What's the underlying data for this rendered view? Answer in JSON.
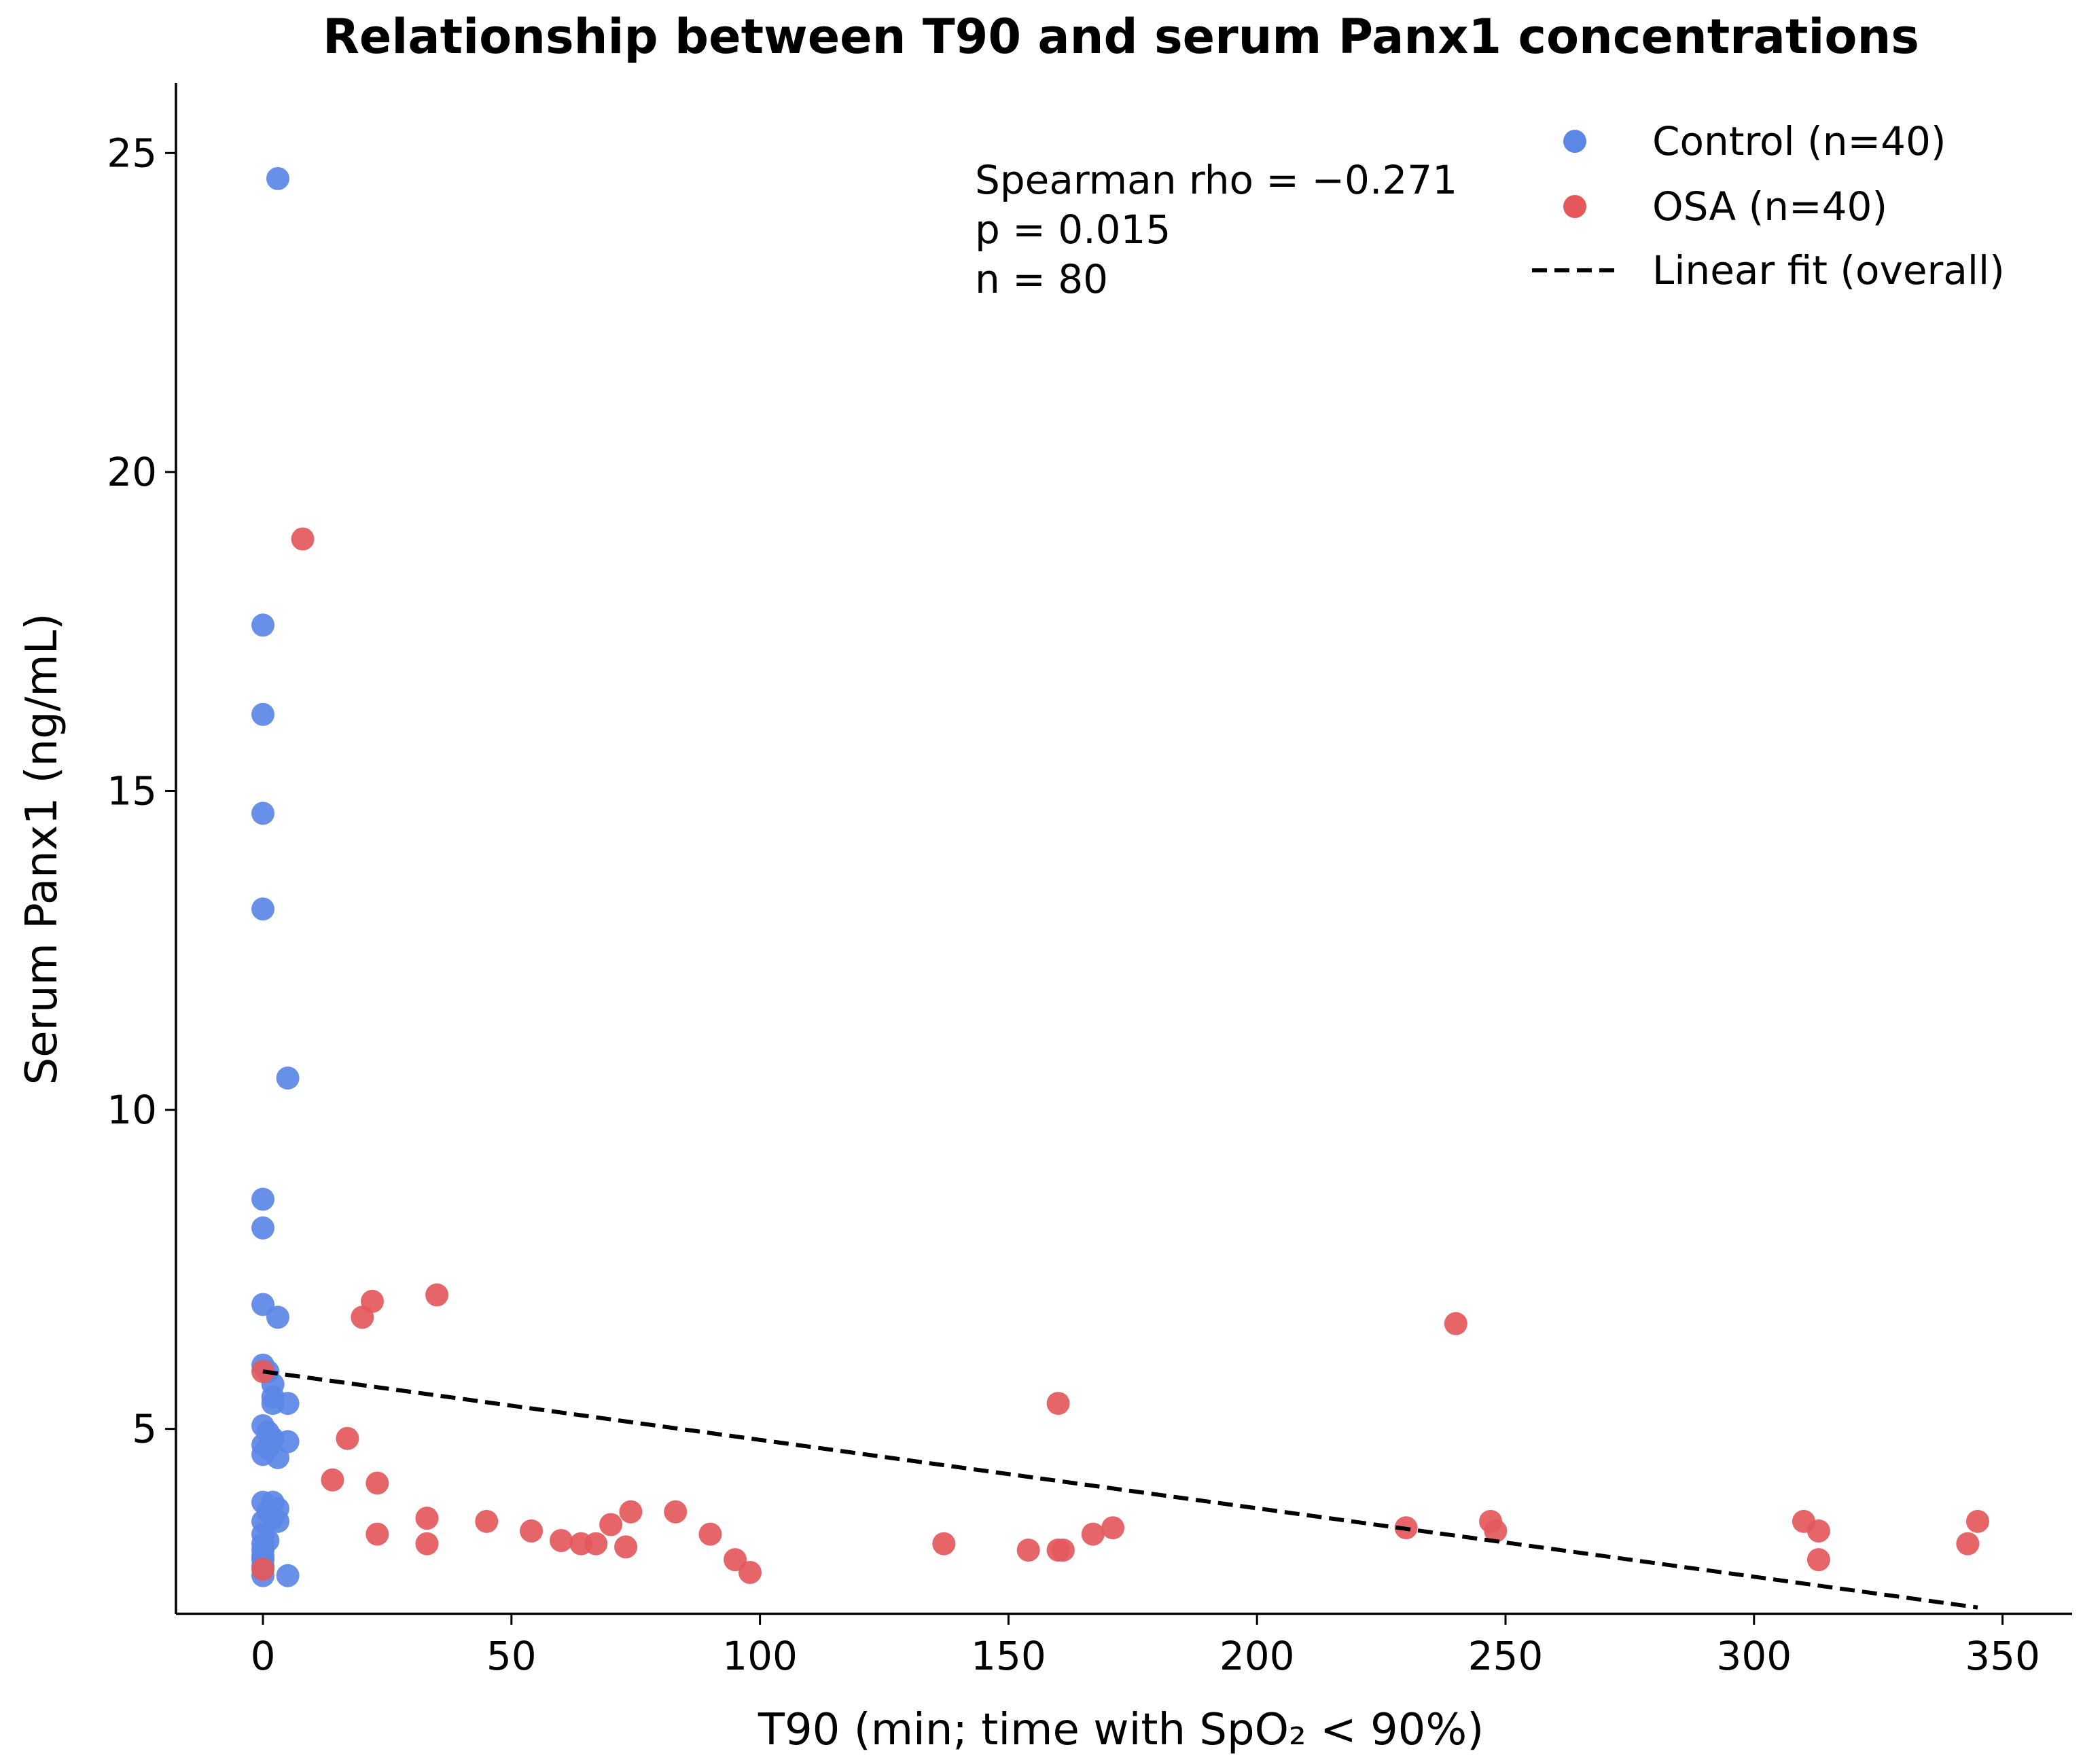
{
  "chart_data": {
    "type": "scatter",
    "title": "Relationship between T90 and serum Panx1 concentrations",
    "xlabel": "T90 (min; time with SpO₂ < 90%)",
    "ylabel": "Serum Panx1 (ng/mL)",
    "xlim": [
      -17.5,
      364
    ],
    "ylim": [
      2.1,
      26.1
    ],
    "x_ticks": [
      0,
      50,
      100,
      150,
      200,
      250,
      300,
      350
    ],
    "y_ticks": [
      5,
      10,
      15,
      20,
      25
    ],
    "grid": false,
    "legend_position": "top-right",
    "annotation": [
      "Spearman rho = −0.271",
      "p = 0.015",
      "n = 80"
    ],
    "series": [
      {
        "name": "Control (n=40)",
        "color": "#5b87e6",
        "points": [
          [
            3,
            24.6
          ],
          [
            0,
            17.6
          ],
          [
            0,
            16.2
          ],
          [
            0,
            14.65
          ],
          [
            0,
            13.15
          ],
          [
            5,
            10.5
          ],
          [
            0,
            8.6
          ],
          [
            0,
            8.15
          ],
          [
            0,
            6.95
          ],
          [
            3,
            6.75
          ],
          [
            0,
            6.0
          ],
          [
            1,
            5.9
          ],
          [
            2,
            5.7
          ],
          [
            2,
            5.5
          ],
          [
            2,
            5.4
          ],
          [
            5,
            5.4
          ],
          [
            0,
            5.05
          ],
          [
            1,
            4.95
          ],
          [
            2,
            4.85
          ],
          [
            5,
            4.8
          ],
          [
            0,
            4.75
          ],
          [
            1,
            4.7
          ],
          [
            3,
            4.55
          ],
          [
            0,
            4.6
          ],
          [
            0,
            3.85
          ],
          [
            2,
            3.85
          ],
          [
            3,
            3.75
          ],
          [
            1,
            3.7
          ],
          [
            2,
            3.6
          ],
          [
            0,
            3.55
          ],
          [
            3,
            3.55
          ],
          [
            0,
            3.35
          ],
          [
            1,
            3.25
          ],
          [
            0,
            3.2
          ],
          [
            0,
            3.1
          ],
          [
            0,
            3.0
          ],
          [
            0,
            2.95
          ],
          [
            0,
            2.85
          ],
          [
            0,
            2.7
          ],
          [
            5,
            2.7
          ]
        ]
      },
      {
        "name": "OSA (n=40)",
        "color": "#e4585c",
        "points": [
          [
            8,
            18.95
          ],
          [
            35,
            7.1
          ],
          [
            22,
            7.0
          ],
          [
            20,
            6.75
          ],
          [
            0,
            5.9
          ],
          [
            17,
            4.85
          ],
          [
            14,
            4.2
          ],
          [
            23,
            4.15
          ],
          [
            23,
            3.35
          ],
          [
            33,
            3.6
          ],
          [
            33,
            3.2
          ],
          [
            45,
            3.55
          ],
          [
            54,
            3.4
          ],
          [
            60,
            3.25
          ],
          [
            64,
            3.2
          ],
          [
            67,
            3.2
          ],
          [
            70,
            3.5
          ],
          [
            73,
            3.15
          ],
          [
            74,
            3.7
          ],
          [
            83,
            3.7
          ],
          [
            90,
            3.35
          ],
          [
            95,
            2.95
          ],
          [
            98,
            2.75
          ],
          [
            0,
            2.8
          ],
          [
            137,
            3.2
          ],
          [
            154,
            3.1
          ],
          [
            160,
            3.1
          ],
          [
            161,
            3.1
          ],
          [
            160,
            5.4
          ],
          [
            167,
            3.35
          ],
          [
            171,
            3.45
          ],
          [
            230,
            3.45
          ],
          [
            240,
            6.65
          ],
          [
            247,
            3.55
          ],
          [
            248,
            3.4
          ],
          [
            310,
            3.55
          ],
          [
            313,
            3.4
          ],
          [
            313,
            2.95
          ],
          [
            343,
            3.2
          ],
          [
            345,
            3.55
          ]
        ]
      }
    ],
    "fit": {
      "name": "Linear fit (overall)",
      "color": "#000000",
      "style": "dashed",
      "x": [
        0,
        345
      ],
      "y": [
        5.9,
        2.2
      ]
    }
  }
}
